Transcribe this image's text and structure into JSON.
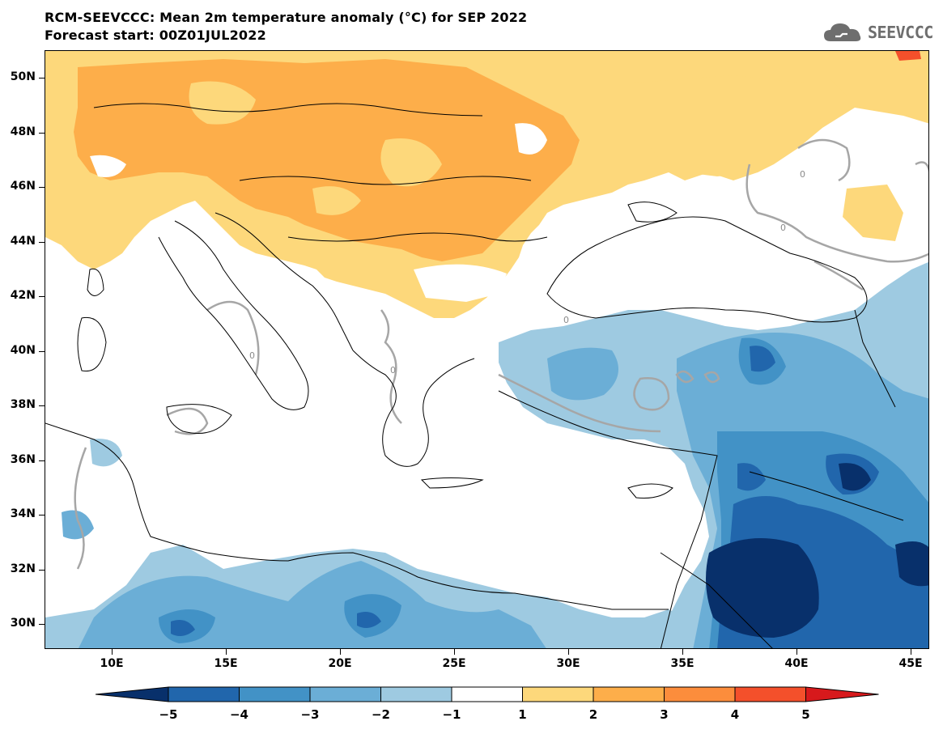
{
  "title_line1": "RCM-SEEVCCC: Mean 2m temperature anomaly (°C) for SEP 2022",
  "title_line2": "Forecast start: 00Z01JUL2022",
  "logo_text": "SEEVCCC",
  "lat_labels": [
    "50N",
    "48N",
    "46N",
    "44N",
    "42N",
    "40N",
    "38N",
    "36N",
    "34N",
    "32N",
    "30N"
  ],
  "lon_labels": [
    "10E",
    "15E",
    "20E",
    "25E",
    "30E",
    "35E",
    "40E",
    "45E"
  ],
  "colorbar": {
    "labels": [
      "−5",
      "−4",
      "−3",
      "−2",
      "−1",
      "1",
      "2",
      "3",
      "4",
      "5"
    ],
    "colors": [
      "#08306b",
      "#2166ac",
      "#4292c6",
      "#6baed6",
      "#9ecae1",
      "#ffffff",
      "#fdd87b",
      "#fdae4a",
      "#fc8d3c",
      "#f4502b",
      "#d7191c"
    ]
  },
  "contour_zero_label": "0",
  "colors": {
    "orange_light": "#fdd87b",
    "orange_mid": "#fdae4a",
    "orange_deep": "#fc8d3c",
    "blue_light": "#9ecae1",
    "blue_mid": "#6baed6",
    "blue_deep": "#4292c6",
    "blue_dark": "#2166ac",
    "blue_darkest": "#08306b",
    "contour": "#a6a6a6"
  }
}
